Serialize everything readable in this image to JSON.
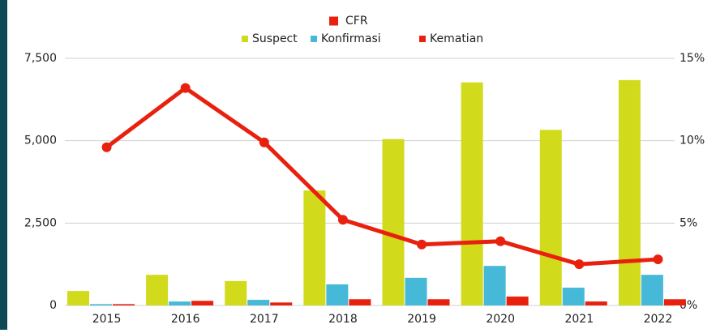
{
  "chart_data": {
    "type": "bar-line",
    "categories": [
      "2015",
      "2016",
      "2017",
      "2018",
      "2019",
      "2020",
      "2021",
      "2022"
    ],
    "series": [
      {
        "name": "Suspect",
        "color": "#d2da1c",
        "values": [
          440,
          930,
          740,
          3490,
          5050,
          6770,
          5330,
          6840
        ]
      },
      {
        "name": "Konfirmasi",
        "color": "#46b9d9",
        "values": [
          40,
          120,
          170,
          640,
          840,
          1200,
          540,
          930
        ]
      },
      {
        "name": "Kematian",
        "color": "#e8210f",
        "values": [
          40,
          140,
          90,
          190,
          190,
          270,
          120,
          190
        ]
      },
      {
        "name": "CFR",
        "color": "#e8210f",
        "axis": "y2",
        "type": "line",
        "values": [
          9.6,
          13.2,
          9.9,
          5.2,
          3.7,
          3.9,
          2.5,
          2.8
        ]
      }
    ],
    "ylim": [
      0,
      7500
    ],
    "yticks": [
      0,
      {
        "value": 2500,
        "label": "2,500"
      },
      {
        "value": 5000,
        "label": "5,000"
      },
      {
        "value": 7500,
        "label": "7,500"
      }
    ],
    "y2lim": [
      0,
      15
    ],
    "y2ticks": [
      {
        "value": 0,
        "label": "0%"
      },
      {
        "value": 5,
        "label": "5%"
      },
      {
        "value": 10,
        "label": "10%"
      },
      {
        "value": 15,
        "label": "15%"
      }
    ],
    "grid": true
  }
}
